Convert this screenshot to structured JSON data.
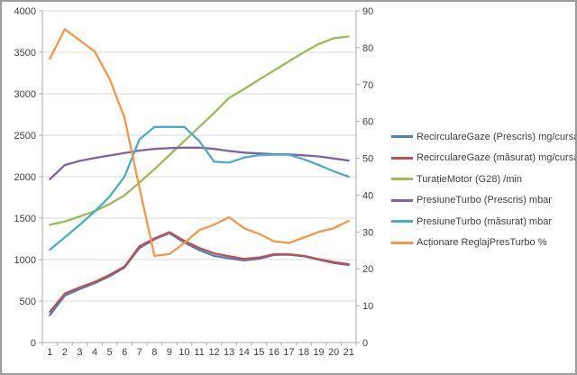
{
  "colors": {
    "grid": "#D9D9D9",
    "axis": "#ABABAB",
    "text": "#404040",
    "frame_border": "#9C9C9C",
    "background": "#FFFFFF"
  },
  "chart_data": {
    "type": "line",
    "title": "",
    "xlabel": "",
    "ylabel": "",
    "grid": true,
    "legend_position": "right",
    "categories": [
      "1",
      "2",
      "3",
      "4",
      "5",
      "6",
      "7",
      "8",
      "9",
      "10",
      "11",
      "12",
      "13",
      "14",
      "15",
      "16",
      "17",
      "18",
      "19",
      "20",
      "21"
    ],
    "left_axis": {
      "min": 0,
      "max": 4000,
      "step": 500,
      "ticks": [
        "0",
        "500",
        "1000",
        "1500",
        "2000",
        "2500",
        "3000",
        "3500",
        "4000"
      ]
    },
    "right_axis": {
      "min": 0,
      "max": 90,
      "step": 10,
      "ticks": [
        "0",
        "10",
        "20",
        "30",
        "40",
        "50",
        "60",
        "70",
        "80",
        "90"
      ]
    },
    "series": [
      {
        "name": "RecirculareGaze (Prescris)  mg/cursa",
        "color": "#4F81BD",
        "axis": "left",
        "values": [
          330,
          565,
          645,
          715,
          800,
          905,
          1140,
          1245,
          1320,
          1205,
          1115,
          1045,
          1015,
          990,
          1010,
          1055,
          1060,
          1040,
          1000,
          960,
          935
        ]
      },
      {
        "name": "RecirculareGaze (măsurat)  mg/cursa",
        "color": "#C0504D",
        "axis": "left",
        "values": [
          370,
          590,
          665,
          730,
          815,
          915,
          1160,
          1255,
          1330,
          1225,
          1140,
          1075,
          1040,
          1010,
          1025,
          1065,
          1065,
          1045,
          1005,
          970,
          945
        ]
      },
      {
        "name": "TurațieMotor (G28)  /min",
        "color": "#9BBB59",
        "axis": "left",
        "values": [
          1420,
          1460,
          1520,
          1585,
          1670,
          1775,
          1930,
          2090,
          2260,
          2430,
          2600,
          2770,
          2950,
          3055,
          3170,
          3280,
          3390,
          3500,
          3600,
          3670,
          3690
        ]
      },
      {
        "name": "PresiuneTurbo (Prescris)  mbar",
        "color": "#8064A2",
        "axis": "left",
        "values": [
          1970,
          2140,
          2190,
          2225,
          2255,
          2285,
          2315,
          2335,
          2345,
          2350,
          2350,
          2335,
          2310,
          2290,
          2280,
          2272,
          2268,
          2258,
          2245,
          2220,
          2195
        ]
      },
      {
        "name": "PresiuneTurbo (măsurat)  mbar",
        "color": "#4BACC6",
        "axis": "left",
        "values": [
          1120,
          1270,
          1420,
          1580,
          1760,
          2000,
          2450,
          2600,
          2600,
          2600,
          2430,
          2180,
          2170,
          2230,
          2260,
          2265,
          2265,
          2210,
          2140,
          2065,
          2000
        ]
      },
      {
        "name": "Acționare ReglajPresTurbo  %",
        "color": "#F79646",
        "axis": "right",
        "values": [
          77,
          85,
          82,
          79,
          71.5,
          61,
          42,
          23.5,
          24,
          27,
          30.5,
          32,
          34,
          31,
          29.5,
          27.5,
          27,
          28.5,
          30,
          31,
          33
        ]
      }
    ]
  }
}
